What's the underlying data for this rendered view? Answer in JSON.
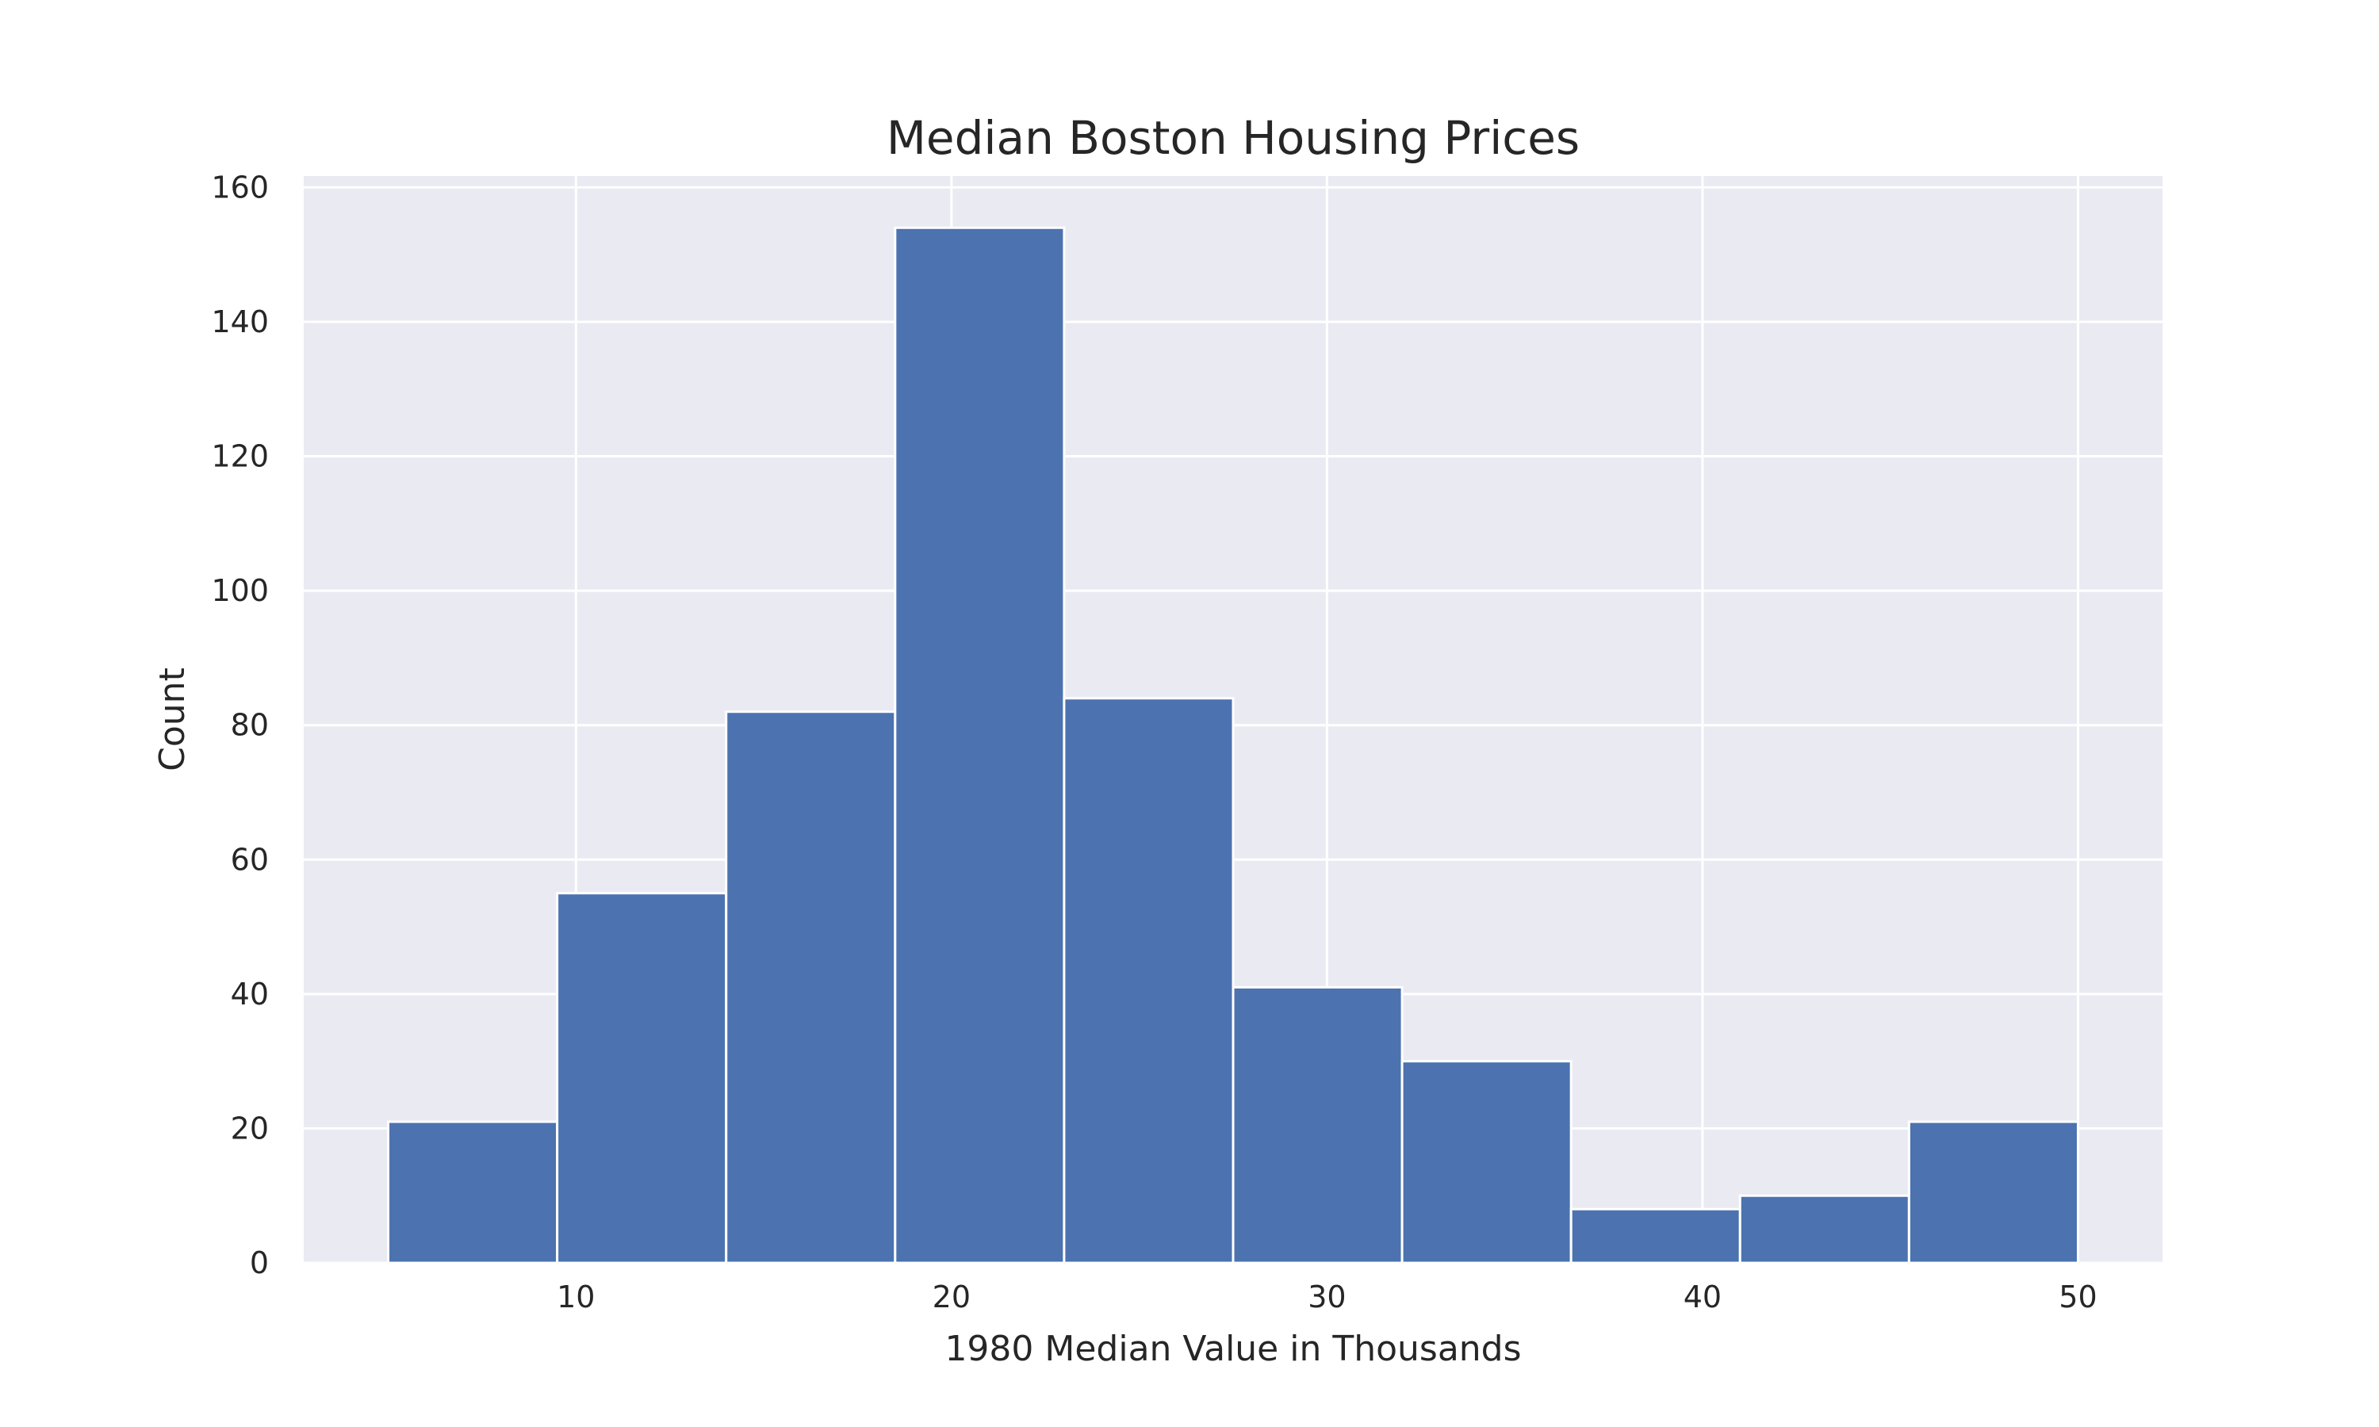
{
  "chart_data": {
    "type": "bar",
    "title": "Median Boston Housing Prices",
    "xlabel": "1980 Median Value in Thousands",
    "ylabel": "Count",
    "bins": [
      {
        "x0": 5.0,
        "x1": 9.5,
        "count": 21
      },
      {
        "x0": 9.5,
        "x1": 14.0,
        "count": 55
      },
      {
        "x0": 14.0,
        "x1": 18.5,
        "count": 82
      },
      {
        "x0": 18.5,
        "x1": 23.0,
        "count": 154
      },
      {
        "x0": 23.0,
        "x1": 27.5,
        "count": 84
      },
      {
        "x0": 27.5,
        "x1": 32.0,
        "count": 41
      },
      {
        "x0": 32.0,
        "x1": 36.5,
        "count": 30
      },
      {
        "x0": 36.5,
        "x1": 41.0,
        "count": 8
      },
      {
        "x0": 41.0,
        "x1": 45.5,
        "count": 10
      },
      {
        "x0": 45.5,
        "x1": 50.0,
        "count": 21
      }
    ],
    "xlim": [
      2.75,
      52.25
    ],
    "ylim": [
      0,
      161.7
    ],
    "xticks": [
      10,
      20,
      30,
      40,
      50
    ],
    "yticks": [
      0,
      20,
      40,
      60,
      80,
      100,
      120,
      140,
      160
    ],
    "grid": true,
    "legend": "none",
    "colors": {
      "bar": "#4c72b0",
      "background": "#eaeaf2",
      "grid": "#ffffff",
      "text": "#262626"
    }
  }
}
